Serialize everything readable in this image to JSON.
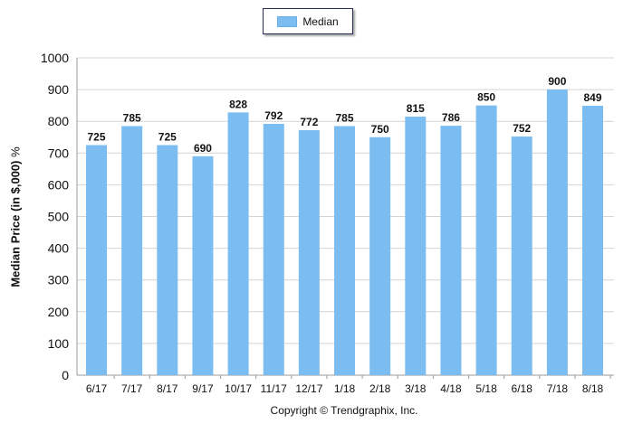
{
  "legend": {
    "label": "Median"
  },
  "footer": {
    "copyright": "Copyright © Trendgraphix, Inc."
  },
  "colors": {
    "bar": "#7cbdf1",
    "grid": "#d4d4d4",
    "axis": "#9a9a9a"
  },
  "chart_data": {
    "type": "bar",
    "categories": [
      "6/17",
      "7/17",
      "8/17",
      "9/17",
      "10/17",
      "11/17",
      "12/17",
      "1/18",
      "2/18",
      "3/18",
      "4/18",
      "5/18",
      "6/18",
      "7/18",
      "8/18"
    ],
    "series": [
      {
        "name": "Median",
        "values": [
          725,
          785,
          725,
          690,
          828,
          792,
          772,
          785,
          750,
          815,
          786,
          850,
          752,
          900,
          849
        ]
      }
    ],
    "ylabel": "Median Price (in $,000)",
    "ylabel_unit": "%",
    "ylim": [
      0,
      1000
    ],
    "yticks": [
      0,
      100,
      200,
      300,
      400,
      500,
      600,
      700,
      800,
      900,
      1000
    ],
    "grid": true,
    "legend_position": "top-center",
    "data_labels": true
  }
}
